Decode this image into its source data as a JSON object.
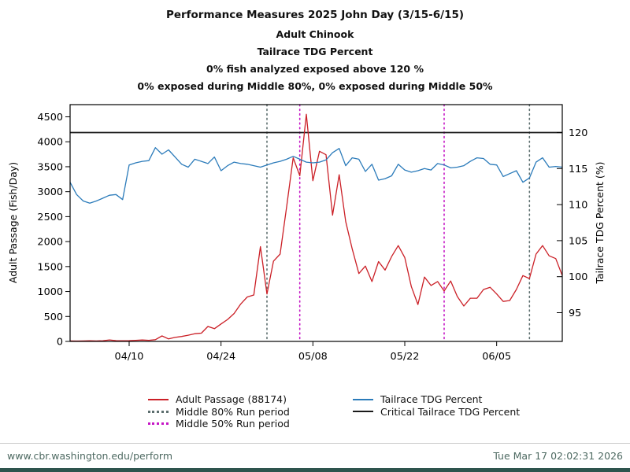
{
  "header": {
    "title_lines": [
      "Performance Measures 2025 John Day (3/15-6/15)",
      "Adult Chinook",
      "Tailrace TDG Percent",
      "0% fish analyzed exposed above 120 %",
      "0% exposed during Middle 80%, 0% exposed during Middle 50%"
    ]
  },
  "colors": {
    "adult_passage": "#cb2027",
    "tdg": "#2b7bba",
    "critical": "#1a1a1a",
    "middle80": "#5c6e6e",
    "middle50": "#c516c5",
    "axis": "#000000",
    "footer_text": "#4e6a62",
    "bottom_band": "#2e544e"
  },
  "chart_data": {
    "type": "line",
    "title": "Performance Measures 2025 John Day (3/15-6/15)",
    "subtitle_lines": [
      "Adult Chinook",
      "Tailrace TDG Percent",
      "0% fish analyzed exposed above 120 %",
      "0% exposed during Middle 80%, 0% exposed during Middle 50%"
    ],
    "x_start_date": "04/01",
    "x_end_date": "06/15",
    "x_cadence": "daily",
    "x_range_days": [
      0,
      75
    ],
    "x_tick_labels": [
      "04/10",
      "04/24",
      "05/08",
      "05/22",
      "06/05"
    ],
    "x_tick_days": [
      9,
      23,
      37,
      51,
      65
    ],
    "grid": false,
    "legend_position": "bottom",
    "left_axis": {
      "label": "Adult Passage (Fish/Day)",
      "ticks": [
        0,
        500,
        1000,
        1500,
        2000,
        2500,
        3000,
        3500,
        4000,
        4500
      ],
      "range": [
        0,
        4735
      ]
    },
    "right_axis": {
      "label": "Tailrace TDG Percent (%)",
      "ticks": [
        95,
        100,
        105,
        110,
        115,
        120
      ],
      "range": [
        91,
        124
      ]
    },
    "series": [
      {
        "name": "Adult Passage (88174)",
        "total": 88174,
        "axis": "left",
        "color": "#cb2027",
        "values": [
          10,
          8,
          10,
          12,
          10,
          14,
          30,
          16,
          12,
          15,
          22,
          28,
          22,
          35,
          110,
          50,
          80,
          100,
          125,
          155,
          165,
          300,
          255,
          350,
          440,
          560,
          750,
          890,
          930,
          1900,
          950,
          1610,
          1750,
          2700,
          3680,
          3320,
          4550,
          3220,
          3810,
          3740,
          2530,
          3340,
          2400,
          1850,
          1360,
          1510,
          1200,
          1600,
          1430,
          1700,
          1920,
          1680,
          1100,
          740,
          1290,
          1120,
          1200,
          1010,
          1210,
          900,
          710,
          865,
          865,
          1040,
          1085,
          950,
          800,
          820,
          1040,
          1320,
          1260,
          1750,
          1920,
          1715,
          1660,
          1320
        ]
      },
      {
        "name": "Tailrace TDG Percent",
        "axis": "right",
        "color": "#2b7bba",
        "values": [
          113.1,
          111.4,
          110.5,
          110.2,
          110.5,
          110.9,
          111.3,
          111.4,
          110.7,
          115.5,
          115.8,
          116.0,
          116.1,
          117.9,
          117.0,
          117.6,
          116.6,
          115.6,
          115.2,
          116.3,
          116.0,
          115.7,
          116.6,
          114.7,
          115.4,
          115.9,
          115.7,
          115.6,
          115.4,
          115.2,
          115.5,
          115.8,
          116.0,
          116.3,
          116.7,
          116.3,
          115.9,
          115.8,
          115.9,
          116.2,
          117.2,
          117.8,
          115.4,
          116.5,
          116.3,
          114.6,
          115.6,
          113.4,
          113.6,
          114.0,
          115.6,
          114.8,
          114.5,
          114.7,
          115.0,
          114.8,
          115.7,
          115.5,
          115.1,
          115.2,
          115.4,
          116.0,
          116.5,
          116.4,
          115.6,
          115.5,
          113.9,
          114.3,
          114.7,
          113.1,
          113.7,
          115.9,
          116.5,
          115.2,
          115.3,
          115.2
        ]
      }
    ],
    "critical_line": {
      "name": "Critical Tailrace TDG Percent",
      "axis": "right",
      "value": 120,
      "color": "#1a1a1a"
    },
    "vlines": [
      {
        "name": "Middle 80% Run period",
        "days": [
          30,
          70
        ],
        "color": "#5c6e6e",
        "style": "dotted"
      },
      {
        "name": "Middle 50% Run period",
        "days": [
          35,
          57
        ],
        "color": "#c516c5",
        "style": "dotted"
      }
    ]
  },
  "legend": {
    "columns": [
      {
        "items": [
          {
            "label": "Adult Passage (88174)",
            "marker": "line",
            "color": "#cb2027",
            "name": "legend-adult-passage"
          },
          {
            "label": "Middle 80% Run period",
            "marker": "dotted",
            "color": "#5c6e6e",
            "name": "legend-middle-80"
          },
          {
            "label": "Middle 50% Run period",
            "marker": "dotted",
            "color": "#c516c5",
            "name": "legend-middle-50"
          }
        ]
      },
      {
        "items": [
          {
            "label": "Tailrace TDG Percent",
            "marker": "line",
            "color": "#2b7bba",
            "name": "legend-tdg"
          },
          {
            "label": "Critical Tailrace TDG Percent",
            "marker": "line",
            "color": "#1a1a1a",
            "name": "legend-critical-tdg"
          }
        ]
      }
    ]
  },
  "footer": {
    "url": "www.cbr.washington.edu/perform",
    "timestamp": "Tue Mar 17 02:02:31 2026"
  }
}
